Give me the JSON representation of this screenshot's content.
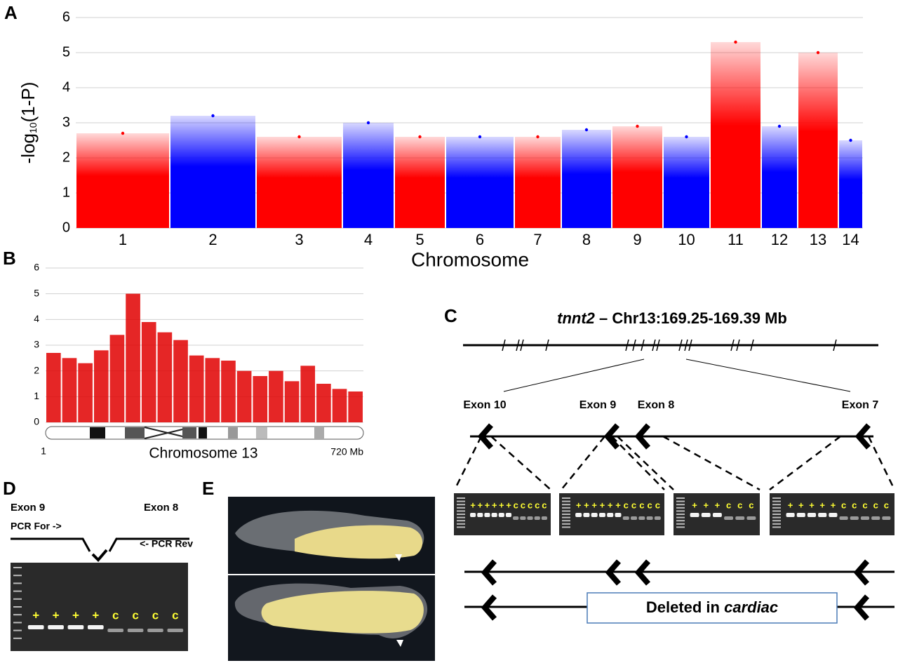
{
  "panels": [
    "A",
    "B",
    "C",
    "D",
    "E"
  ],
  "chart_data": [
    {
      "type": "manhattan",
      "categories": [
        "1",
        "2",
        "3",
        "4",
        "5",
        "6",
        "7",
        "8",
        "9",
        "10",
        "11",
        "12",
        "13",
        "14"
      ],
      "values": [
        2.7,
        3.2,
        2.6,
        3.0,
        2.6,
        2.6,
        2.6,
        2.8,
        2.9,
        2.6,
        5.3,
        2.9,
        5.0,
        2.5
      ],
      "colors": [
        "#ff0000",
        "#0000ff"
      ],
      "ylim": [
        0,
        6
      ],
      "yticks": [
        0,
        1,
        2,
        3,
        4,
        5,
        6
      ],
      "grid": true,
      "xlabel": "Chromosome",
      "ylabel": {
        "text": "-log",
        "sub": "10",
        "rest": "(1-P)"
      }
    },
    {
      "type": "bar",
      "values": [
        2.7,
        2.5,
        2.3,
        2.8,
        3.4,
        5.0,
        3.9,
        3.5,
        3.2,
        2.6,
        2.5,
        2.4,
        2.0,
        1.8,
        2.0,
        1.6,
        2.2,
        1.5,
        1.3,
        1.2
      ],
      "color": "#e00000",
      "ylim": [
        0,
        6
      ],
      "yticks": [
        0,
        1,
        2,
        3,
        4,
        5,
        6
      ],
      "grid": true,
      "xlabel": "Chromosome 13",
      "x_start_label": "1",
      "x_end_label": "720 Mb"
    }
  ],
  "panel_c": {
    "title_italic": "tnnt2",
    "title_rest": " – Chr13:169.25-169.39 Mb",
    "exons": [
      "Exon 10",
      "Exon 9",
      "Exon 8",
      "Exon 7"
    ],
    "gels": [
      [
        "+",
        "+",
        "+",
        "+",
        "+",
        "+",
        "c",
        "c",
        "c",
        "c",
        "c"
      ],
      [
        "+",
        "+",
        "+",
        "+",
        "+",
        "+",
        "c",
        "c",
        "c",
        "c",
        "c"
      ],
      [
        "+",
        "+",
        "+",
        "c",
        "c",
        "c"
      ],
      [
        "+",
        "+",
        "+",
        "+",
        "+",
        "c",
        "c",
        "c",
        "c",
        "c"
      ]
    ],
    "deleted_text": "Deleted in ",
    "deleted_italic": "cardiac"
  },
  "panel_d": {
    "exon_left": "Exon 9",
    "exon_right": "Exon 8",
    "primer_for": "PCR For ->",
    "primer_rev": "<- PCR Rev",
    "gel": [
      "+",
      "+",
      "+",
      "+",
      "c",
      "c",
      "c",
      "c"
    ]
  }
}
